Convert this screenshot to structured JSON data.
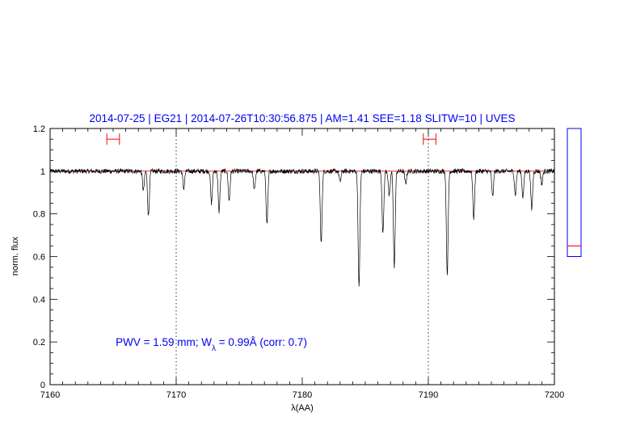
{
  "chart_data": {
    "type": "line",
    "title": "2014-07-25 | EG21 | 2014-07-26T10:30:56.875 | AM=1.41 SEE=1.18 SLITW=10 | UVES",
    "xlabel": "λ(AA)",
    "ylabel": "norm. flux",
    "xlim": [
      7160,
      7200
    ],
    "ylim": [
      0,
      1.2
    ],
    "x_ticks": [
      7160,
      7170,
      7180,
      7190,
      7200
    ],
    "x_tick_labels": [
      "7160",
      "7170",
      "7180",
      "7190",
      "7200"
    ],
    "y_ticks": [
      0,
      0.2,
      0.4,
      0.6,
      0.8,
      1,
      1.2
    ],
    "y_tick_labels": [
      "0",
      "0.2",
      "0.4",
      "0.6",
      "0.8",
      "1",
      "1.2"
    ],
    "grid": false,
    "reference_line": {
      "y": 1.0,
      "color": "#ff0000"
    },
    "vertical_markers": [
      7170,
      7190
    ],
    "range_markers": [
      {
        "x_start": 7164.5,
        "x_end": 7165.5,
        "y": 1.15,
        "color": "#ff0000"
      },
      {
        "x_start": 7189.6,
        "x_end": 7190.6,
        "y": 1.15,
        "color": "#ff0000"
      }
    ],
    "annotation": {
      "prefix": "PWV = 1.59 mm; W",
      "subscript": "λ",
      "suffix": " = 0.99Å (corr: 0.7)",
      "x": 7165.2,
      "y": 0.2,
      "color": "#0000ee"
    },
    "continuum": 1.0,
    "absorption_lines": [
      {
        "x": 7167.8,
        "depth": 0.21
      },
      {
        "x": 7167.4,
        "depth": 0.09
      },
      {
        "x": 7170.6,
        "depth": 0.08
      },
      {
        "x": 7172.8,
        "depth": 0.15
      },
      {
        "x": 7173.4,
        "depth": 0.19
      },
      {
        "x": 7174.2,
        "depth": 0.14
      },
      {
        "x": 7176.2,
        "depth": 0.09
      },
      {
        "x": 7177.2,
        "depth": 0.25
      },
      {
        "x": 7181.5,
        "depth": 0.34
      },
      {
        "x": 7183.0,
        "depth": 0.05
      },
      {
        "x": 7184.5,
        "depth": 0.54
      },
      {
        "x": 7186.4,
        "depth": 0.29
      },
      {
        "x": 7186.9,
        "depth": 0.12
      },
      {
        "x": 7187.3,
        "depth": 0.45
      },
      {
        "x": 7188.2,
        "depth": 0.06
      },
      {
        "x": 7191.5,
        "depth": 0.48
      },
      {
        "x": 7193.6,
        "depth": 0.22
      },
      {
        "x": 7195.1,
        "depth": 0.12
      },
      {
        "x": 7196.9,
        "depth": 0.11
      },
      {
        "x": 7197.5,
        "depth": 0.12
      },
      {
        "x": 7198.2,
        "depth": 0.18
      },
      {
        "x": 7199.0,
        "depth": 0.06
      }
    ],
    "line_color": "#000000",
    "side_panel": {
      "ylim": [
        0,
        1.2
      ],
      "box_range": [
        0.6,
        1.2
      ],
      "marker_y": 0.65,
      "box_color": "#0000ee",
      "marker_color": "#ff0000"
    }
  }
}
